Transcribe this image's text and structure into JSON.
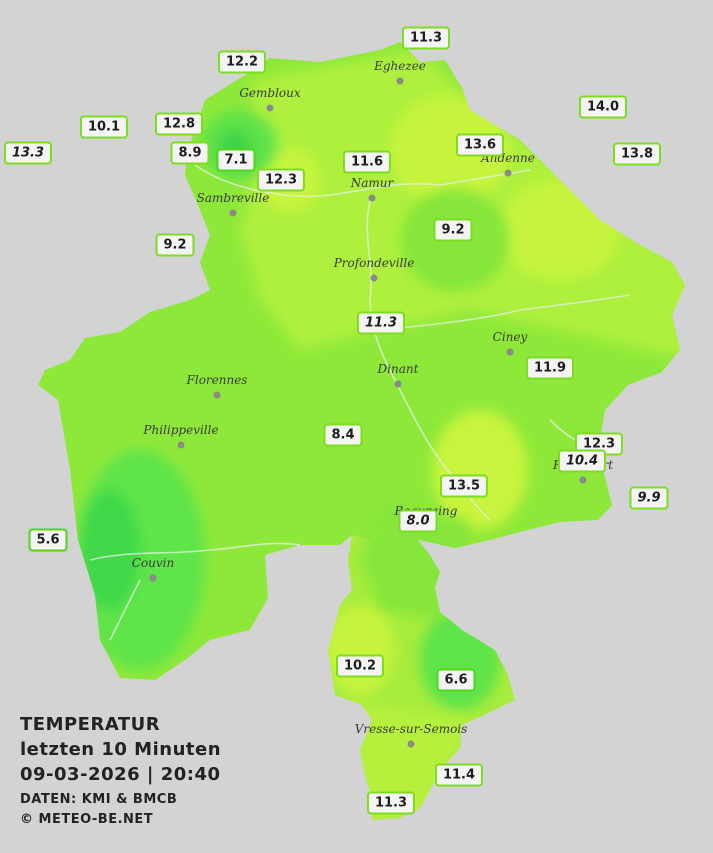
{
  "legend": {
    "title": "TEMPERATUR",
    "period": "letzten 10 Minuten",
    "timestamp": "09-03-2026  |  20:40",
    "source": "DATEN: KMI & BMCB",
    "copyright": "© METEO-BE.NET"
  },
  "colors": {
    "background": "#d3d3d3",
    "province_base": "#8ee83a",
    "warm_yellow": "#c9f53a",
    "cool_green": "#4fe44a",
    "badge_border": "#7ddc1f"
  },
  "cities": [
    {
      "name": "Eghezee"
    },
    {
      "name": "Gembloux"
    },
    {
      "name": "Andenne"
    },
    {
      "name": "Namur"
    },
    {
      "name": "Sambreville"
    },
    {
      "name": "Profondeville"
    },
    {
      "name": "Ciney"
    },
    {
      "name": "Dinant"
    },
    {
      "name": "Florennes"
    },
    {
      "name": "Philippeville"
    },
    {
      "name": "Rochefort"
    },
    {
      "name": "Beauraing"
    },
    {
      "name": "Couvin"
    },
    {
      "name": "Vresse-sur-Semois"
    }
  ],
  "stations": [
    {
      "value": "11.3",
      "italic": false
    },
    {
      "value": "12.2",
      "italic": false
    },
    {
      "value": "14.0",
      "italic": false
    },
    {
      "value": "10.1",
      "italic": false
    },
    {
      "value": "12.8",
      "italic": false
    },
    {
      "value": "13.3",
      "italic": true
    },
    {
      "value": "8.9",
      "italic": false
    },
    {
      "value": "7.1",
      "italic": false
    },
    {
      "value": "13.6",
      "italic": false
    },
    {
      "value": "13.8",
      "italic": false
    },
    {
      "value": "11.6",
      "italic": false
    },
    {
      "value": "12.3",
      "italic": false
    },
    {
      "value": "9.2",
      "italic": false
    },
    {
      "value": "9.2",
      "italic": false
    },
    {
      "value": "11.3",
      "italic": true
    },
    {
      "value": "11.9",
      "italic": false
    },
    {
      "value": "8.4",
      "italic": false
    },
    {
      "value": "12.3",
      "italic": false
    },
    {
      "value": "10.4",
      "italic": true
    },
    {
      "value": "13.5",
      "italic": false
    },
    {
      "value": "9.9",
      "italic": true
    },
    {
      "value": "8.0",
      "italic": true
    },
    {
      "value": "5.6",
      "italic": false
    },
    {
      "value": "10.2",
      "italic": false
    },
    {
      "value": "6.6",
      "italic": false
    },
    {
      "value": "11.4",
      "italic": false
    },
    {
      "value": "11.3",
      "italic": false
    }
  ]
}
